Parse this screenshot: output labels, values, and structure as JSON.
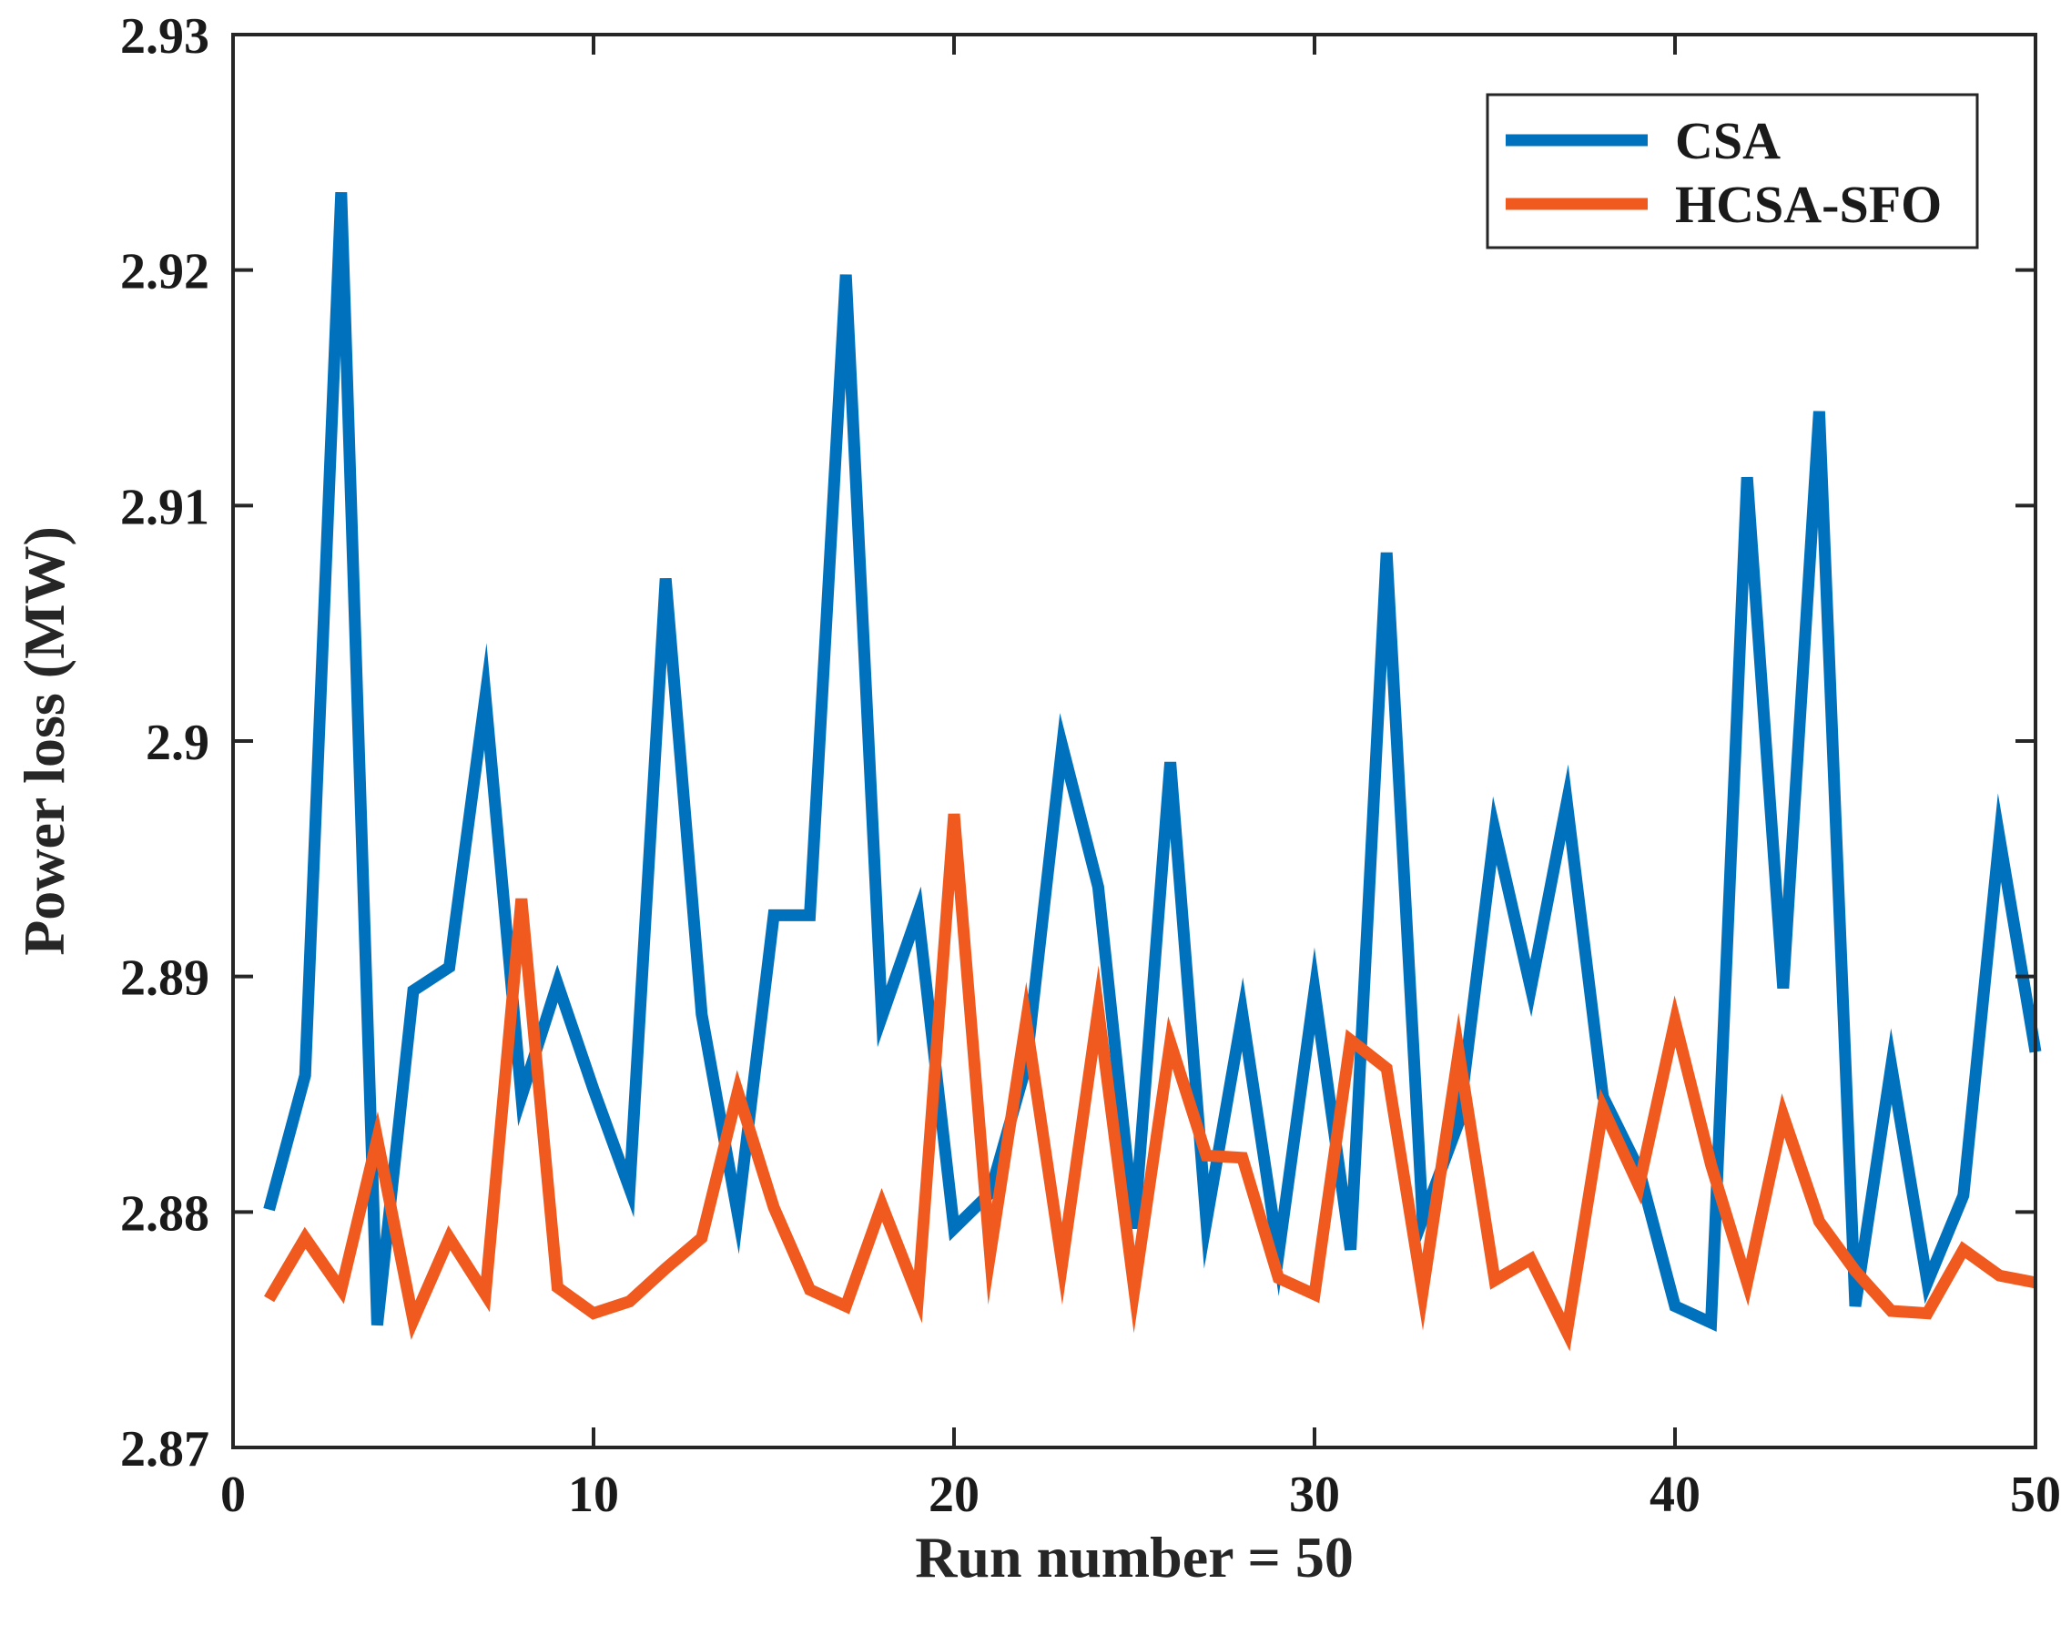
{
  "chart_data": {
    "type": "line",
    "title": "",
    "xlabel": "Run number = 50",
    "ylabel": "Power loss (MW)",
    "xlim": [
      0,
      50
    ],
    "ylim": [
      2.87,
      2.93
    ],
    "xticks": [
      0,
      10,
      20,
      30,
      40,
      50
    ],
    "xtick_labels": [
      "0",
      "10",
      "20",
      "30",
      "40",
      "50"
    ],
    "yticks": [
      2.87,
      2.88,
      2.89,
      2.9,
      2.91,
      2.92,
      2.93
    ],
    "ytick_labels": [
      "2.87",
      "2.88",
      "2.89",
      "2.9",
      "2.91",
      "2.92",
      "2.93"
    ],
    "grid": false,
    "legend_position": "top-right",
    "x": [
      1,
      2,
      3,
      4,
      5,
      6,
      7,
      8,
      9,
      10,
      11,
      12,
      13,
      14,
      15,
      16,
      17,
      18,
      19,
      20,
      21,
      22,
      23,
      24,
      25,
      26,
      27,
      28,
      29,
      30,
      31,
      32,
      33,
      34,
      35,
      36,
      37,
      38,
      39,
      40,
      41,
      42,
      43,
      44,
      45,
      46,
      47,
      48,
      49,
      50
    ],
    "series": [
      {
        "name": "CSA",
        "color": "#0072BD",
        "values": [
          2.8801,
          2.8858,
          2.9233,
          2.8752,
          2.8894,
          2.8904,
          2.9019,
          2.8849,
          2.8897,
          2.8852,
          2.881,
          2.9069,
          2.8884,
          2.8799,
          2.8926,
          2.8926,
          2.9198,
          2.8883,
          2.8927,
          2.8793,
          2.8808,
          2.8862,
          2.8998,
          2.8938,
          2.8793,
          2.8991,
          2.8796,
          2.8884,
          2.8782,
          2.8894,
          2.8784,
          2.908,
          2.8797,
          2.8838,
          2.8962,
          2.8895,
          2.8974,
          2.8849,
          2.8818,
          2.876,
          2.8753,
          2.9112,
          2.8895,
          2.914,
          2.876,
          2.8862,
          2.877,
          2.8807,
          2.8959,
          2.8868
        ]
      },
      {
        "name": "HCSA-SFO",
        "color": "#F05A1E",
        "values": [
          2.8763,
          2.8789,
          2.8767,
          2.8831,
          2.8754,
          2.8789,
          2.8765,
          2.8933,
          2.8768,
          2.8757,
          2.8762,
          2.8776,
          2.8789,
          2.8851,
          2.8802,
          2.8767,
          2.876,
          2.8803,
          2.8764,
          2.8969,
          2.8782,
          2.8881,
          2.8778,
          2.8886,
          2.8767,
          2.8872,
          2.8824,
          2.8823,
          2.8772,
          2.8765,
          2.8873,
          2.8861,
          2.8766,
          2.8868,
          2.8771,
          2.878,
          2.8749,
          2.8844,
          2.8811,
          2.8881,
          2.882,
          2.877,
          2.8841,
          2.8796,
          2.8775,
          2.8758,
          2.8757,
          2.8784,
          2.8773,
          2.877
        ]
      }
    ]
  }
}
